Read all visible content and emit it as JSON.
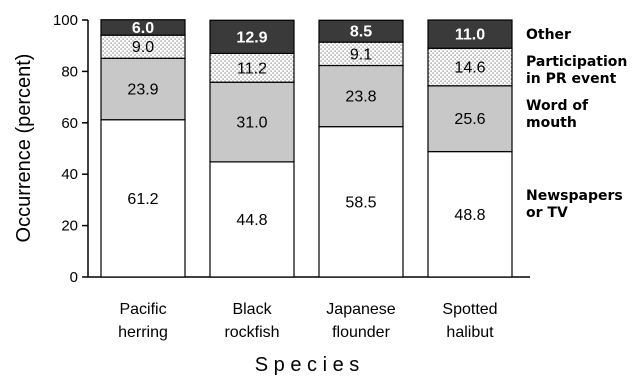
{
  "chart_data": {
    "type": "bar",
    "stacked": true,
    "categories": [
      "Pacific\nherring",
      "Black\nrockfish",
      "Japanese\nflounder",
      "Spotted\nhalibut"
    ],
    "series": [
      {
        "name": "Newspapers or TV",
        "values": [
          61.2,
          44.8,
          58.5,
          48.8
        ],
        "fill": "#ffffff",
        "label_color": "#000000"
      },
      {
        "name": "Word of mouth",
        "values": [
          23.9,
          31.0,
          23.8,
          25.6
        ],
        "fill": "#c8c8c8",
        "label_color": "#000000"
      },
      {
        "name": "Participation in PR event",
        "values": [
          9.0,
          11.2,
          9.1,
          14.6
        ],
        "fill": "dots",
        "label_color": "#000000"
      },
      {
        "name": "Other",
        "values": [
          6.0,
          12.9,
          8.5,
          11.0
        ],
        "fill": "#3a3a3a",
        "label_color": "#ffffff"
      }
    ],
    "legend": {
      "placement": "right",
      "entries": [
        {
          "lines": [
            "Other"
          ]
        },
        {
          "lines": [
            "Participation",
            "in PR event"
          ]
        },
        {
          "lines": [
            "Word of",
            "mouth"
          ]
        },
        {
          "lines": [
            "Newspapers",
            "or TV"
          ]
        }
      ]
    },
    "xlabel": "S p e c i e s",
    "ylabel": "Occurrence (percent)",
    "ylim": [
      0,
      100
    ],
    "yticks": [
      0,
      20,
      40,
      60,
      80,
      100
    ],
    "grid": false,
    "title": ""
  }
}
